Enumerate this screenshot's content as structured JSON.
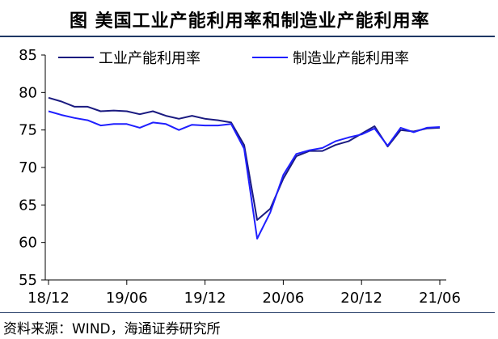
{
  "header": {
    "title": "图  美国工业产能利用率和制造业产能利用率"
  },
  "footer": {
    "source": "资料来源：WIND，海通证券研究所"
  },
  "chart_data": {
    "type": "line",
    "xlabel": "",
    "ylabel": "",
    "ylim": [
      55,
      85
    ],
    "yticks": [
      55,
      60,
      65,
      70,
      75,
      80,
      85
    ],
    "x_tick_labels": [
      "18/12",
      "19/06",
      "19/12",
      "20/06",
      "20/12",
      "21/06"
    ],
    "x": [
      "18/12",
      "19/01",
      "19/02",
      "19/03",
      "19/04",
      "19/05",
      "19/06",
      "19/07",
      "19/08",
      "19/09",
      "19/10",
      "19/11",
      "19/12",
      "20/01",
      "20/02",
      "20/03",
      "20/04",
      "20/05",
      "20/06",
      "20/07",
      "20/08",
      "20/09",
      "20/10",
      "20/11",
      "20/12",
      "21/01",
      "21/02",
      "21/03",
      "21/04",
      "21/05",
      "21/06"
    ],
    "grid": false,
    "legend_position": "top",
    "series": [
      {
        "name": "工业产能利用率",
        "color": "#1a1a80",
        "values": [
          79.3,
          78.8,
          78.1,
          78.1,
          77.5,
          77.6,
          77.5,
          77.1,
          77.5,
          76.9,
          76.5,
          76.9,
          76.5,
          76.3,
          76.0,
          73.0,
          63.0,
          64.5,
          68.5,
          71.5,
          72.2,
          72.2,
          73.0,
          73.5,
          74.5,
          75.5,
          72.8,
          75.0,
          74.8,
          75.2,
          75.3
        ]
      },
      {
        "name": "制造业产能利用率",
        "color": "#1f1fff",
        "values": [
          77.5,
          77.0,
          76.6,
          76.3,
          75.6,
          75.8,
          75.8,
          75.3,
          76.0,
          75.8,
          75.0,
          75.7,
          75.6,
          75.6,
          75.8,
          72.5,
          60.5,
          64.0,
          69.0,
          71.8,
          72.3,
          72.6,
          73.5,
          74.0,
          74.4,
          75.2,
          72.9,
          75.3,
          74.7,
          75.3,
          75.4
        ]
      }
    ]
  }
}
